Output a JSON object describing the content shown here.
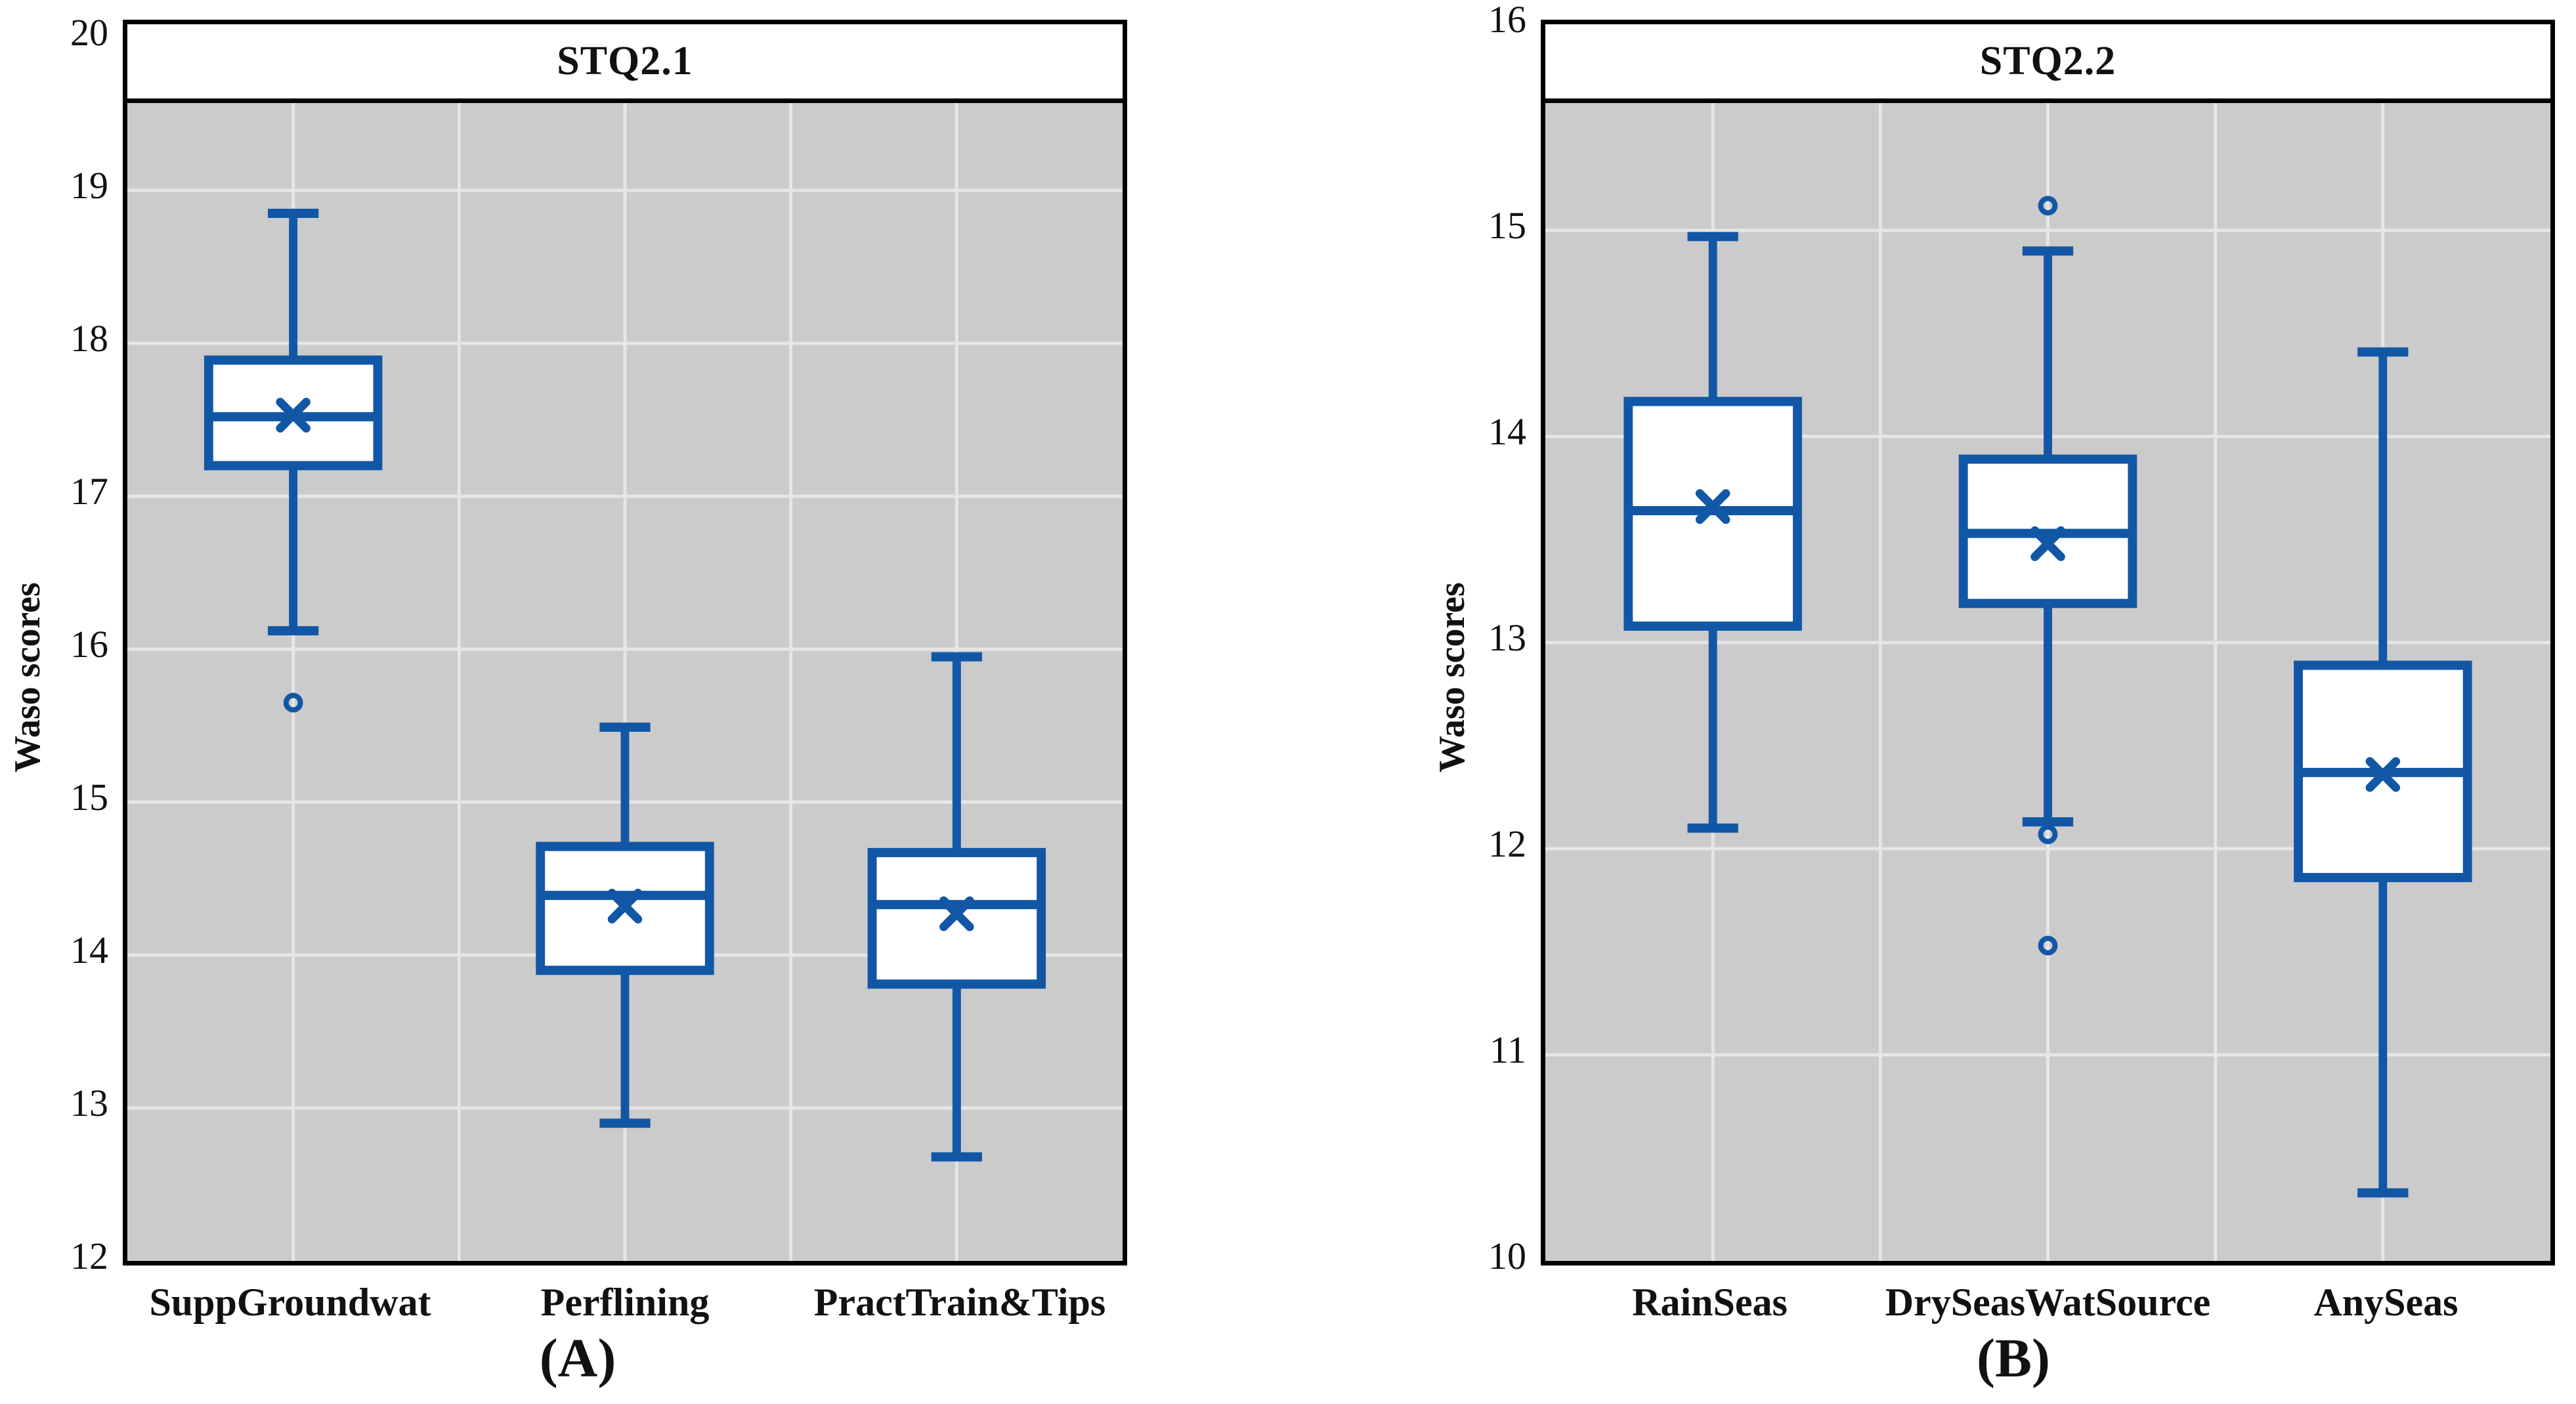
{
  "figure": {
    "background": "#ffffff"
  },
  "style": {
    "box_color": "#1157A6",
    "plot_bg": "#cbcbcb",
    "grid_color": "#e6e6e6",
    "frame_color": "#000000",
    "title_bg": "#ffffff",
    "text_color": "#111111"
  },
  "chart_data": [
    {
      "panel": "A",
      "type": "box",
      "title": "STQ2.1",
      "ylabel": "Waso scores",
      "caption": "(A)",
      "ylim": [
        12,
        20
      ],
      "ytick_step": 1,
      "grid": true,
      "legend_position": "none",
      "categories": [
        "SuppGroundwat",
        "Perflining",
        "PractTrain&Tips"
      ],
      "series": [
        {
          "name": "SuppGroundwat",
          "whisker_low": 16.12,
          "q1": 17.2,
          "median": 17.52,
          "mean": 17.53,
          "q3": 17.89,
          "whisker_high": 18.85,
          "outliers": [
            15.65
          ]
        },
        {
          "name": "Perflining",
          "whisker_low": 12.9,
          "q1": 13.9,
          "median": 14.39,
          "mean": 14.32,
          "q3": 14.71,
          "whisker_high": 15.49,
          "outliers": []
        },
        {
          "name": "PractTrain&Tips",
          "whisker_low": 12.68,
          "q1": 13.81,
          "median": 14.33,
          "mean": 14.27,
          "q3": 14.67,
          "whisker_high": 15.95,
          "outliers": []
        }
      ]
    },
    {
      "panel": "B",
      "type": "box",
      "title": "STQ2.2",
      "ylabel": "Waso scores",
      "caption": "(B)",
      "ylim": [
        10,
        16
      ],
      "ytick_step": 1,
      "grid": true,
      "legend_position": "none",
      "categories": [
        "RainSeas",
        "DrySeasWatSource",
        "AnySeas"
      ],
      "series": [
        {
          "name": "RainSeas",
          "whisker_low": 12.1,
          "q1": 13.08,
          "median": 13.64,
          "mean": 13.66,
          "q3": 14.17,
          "whisker_high": 14.97,
          "outliers": []
        },
        {
          "name": "DrySeasWatSource",
          "whisker_low": 12.13,
          "q1": 13.19,
          "median": 13.53,
          "mean": 13.48,
          "q3": 13.89,
          "whisker_high": 14.9,
          "outliers": [
            15.12,
            12.07,
            11.53
          ]
        },
        {
          "name": "AnySeas",
          "whisker_low": 10.33,
          "q1": 11.86,
          "median": 12.37,
          "mean": 12.36,
          "q3": 12.89,
          "whisker_high": 14.41,
          "outliers": []
        }
      ]
    }
  ]
}
